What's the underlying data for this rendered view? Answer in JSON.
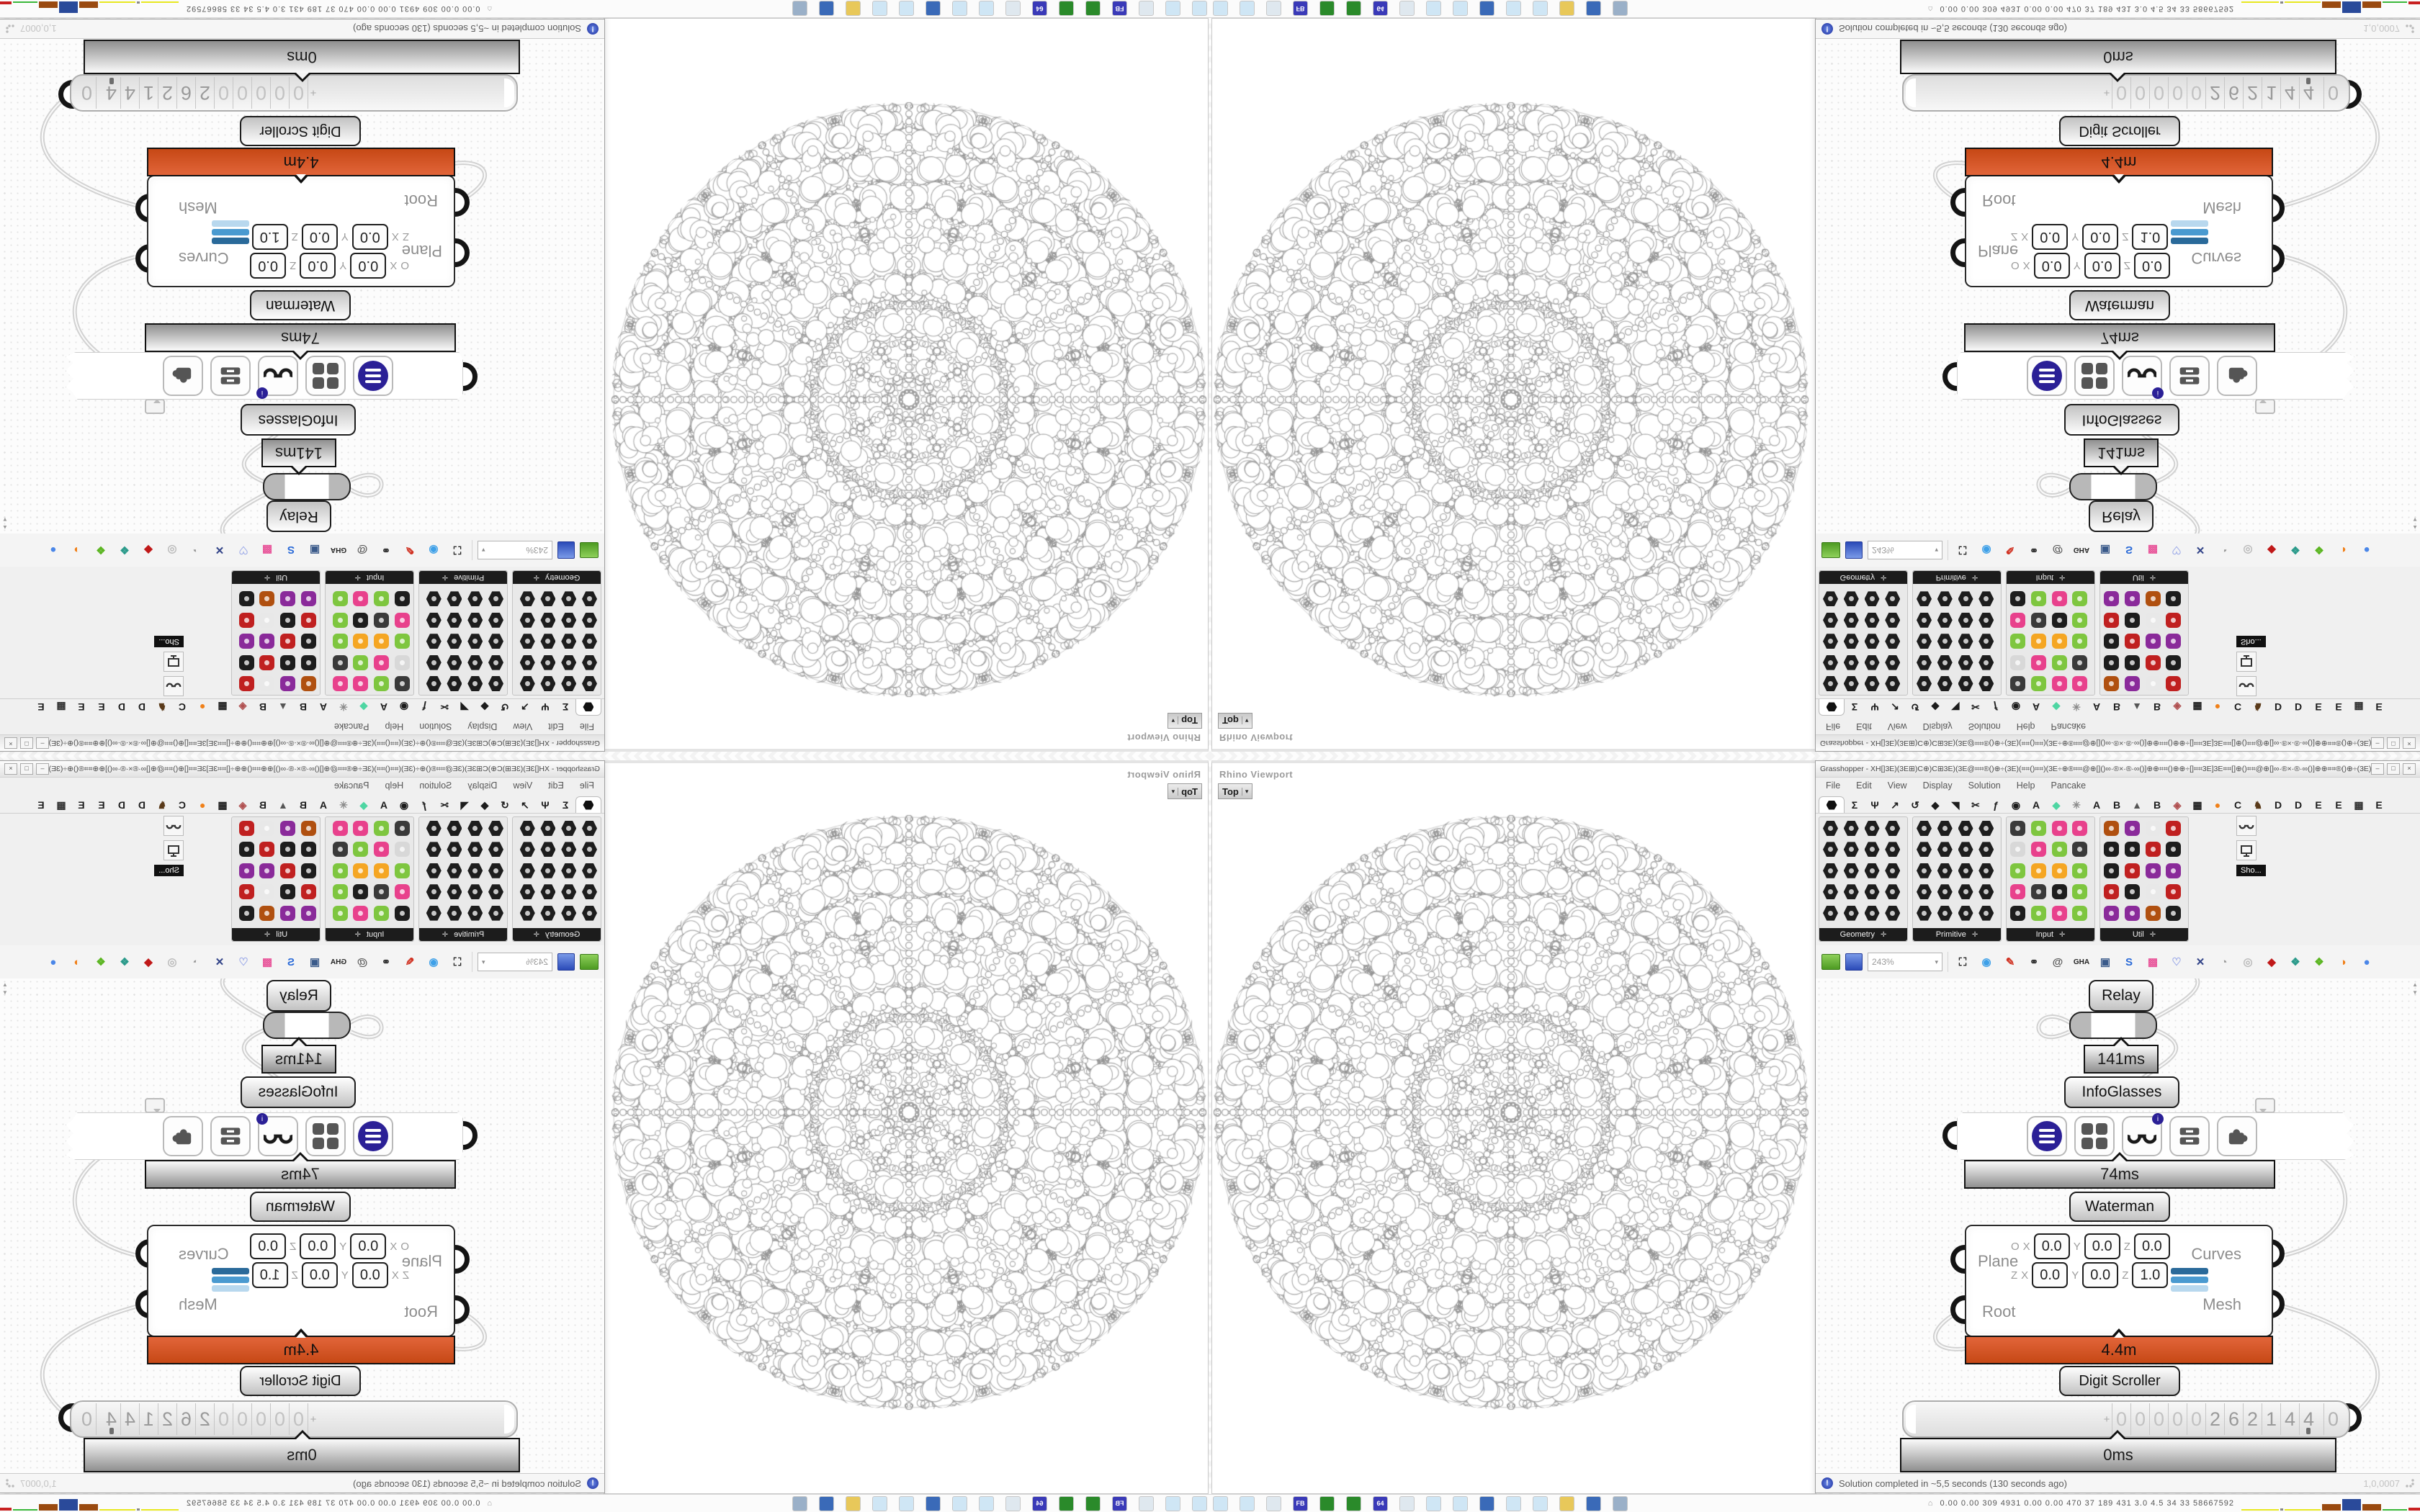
{
  "quadrant": {
    "viewport": {
      "window_title": "Rhino Viewport",
      "tab_label": "Top",
      "tab_caret": "▾"
    },
    "gh": {
      "title": "Grasshopper - XH[]3E)(3E⊞)C⊕)C⊞3E)(3E@⌗⌗®()⊕÷(3E)(⌗⌗()⌗⌗)(3E÷⊕®⌗⌗@⊕[]()∞·®×·®·∞()]⊕⊕⌗⌗()⊕⊕÷[]⌗⌗3E]3E⌗⌗[]⊕()⌗⌗@⊕[]∞·®×·®·∞()]⊕⊕⌗⌗®()⊕÷(3E)(⌗⌗()...",
      "window_buttons": [
        "–",
        "□",
        "×"
      ],
      "menu": [
        "File",
        "Edit",
        "View",
        "Display",
        "Solution",
        "Help",
        "Pancake"
      ],
      "tabs": [
        {
          "hex": true,
          "sel": true
        },
        {
          "g": "Σ"
        },
        {
          "g": "Ψ"
        },
        {
          "g": "↗"
        },
        {
          "g": "↺"
        },
        {
          "g": "◆"
        },
        {
          "g": "◥"
        },
        {
          "g": "✂"
        },
        {
          "g": "ƒ"
        },
        {
          "g": "◉"
        },
        {
          "g": "A"
        },
        {
          "g": "◆",
          "c": "#4fd6a3"
        },
        {
          "g": "✳",
          "c": "#8a8a8a"
        },
        {
          "g": "A"
        },
        {
          "g": "B"
        },
        {
          "g": "▲",
          "c": "#555555"
        },
        {
          "g": "B"
        },
        {
          "g": "◈",
          "c": "#b05050"
        },
        {
          "g": "▦"
        },
        {
          "g": "●",
          "c": "#f08019"
        },
        {
          "g": "C"
        },
        {
          "g": "♞",
          "c": "#5a3a1a"
        },
        {
          "g": "D"
        },
        {
          "g": "D"
        },
        {
          "g": "E"
        },
        {
          "g": "E"
        },
        {
          "g": "▩",
          "c": "#333333"
        },
        {
          "g": "E"
        }
      ],
      "groups": [
        {
          "name": "Geometry",
          "expand": "✛",
          "palette": [
            "#1d1d1d"
          ]
        },
        {
          "name": "Primitive",
          "expand": "✛",
          "palette": [
            "#1d1d1d"
          ]
        },
        {
          "name": "Input",
          "expand": "✛",
          "palette": [
            "#1d1d1d",
            "#e8418c",
            "#f5a623",
            "#7ec63f",
            "#3a3a3a",
            "#d8d8d8"
          ]
        },
        {
          "name": "Util",
          "expand": "✛",
          "palette": [
            "#1d1d1d",
            "#8a2a9a",
            "#c02020",
            "#e8e8e8",
            "#b05010"
          ]
        }
      ],
      "sho": {
        "tooltip": "Sho..."
      },
      "toolbar": {
        "zoom_value": "243%",
        "icons": [
          {
            "g": "⛶",
            "c": "#222222"
          },
          {
            "g": "◉",
            "c": "#3ea0e8"
          },
          {
            "g": "✎",
            "c": "#d03020"
          },
          {
            "g": "⚭",
            "c": "#333333"
          },
          {
            "g": "@",
            "c": "#555555"
          },
          {
            "g": "GHA",
            "c": "#222222"
          },
          {
            "g": "▣",
            "c": "#3a5a8a"
          },
          {
            "g": "S",
            "c": "#2a6ad8"
          },
          {
            "g": "▩",
            "c": "#e8559a"
          },
          {
            "g": "♡",
            "c": "#9aa8e8"
          },
          {
            "g": "✕",
            "c": "#334488"
          },
          {
            "g": "◔",
            "c": "#999999"
          },
          {
            "g": "◎",
            "c": "#bbbbbb"
          },
          {
            "g": "◆",
            "c": "#c01818"
          },
          {
            "g": "❖",
            "c": "#2a9a8a"
          },
          {
            "g": "❖",
            "c": "#5ab520"
          },
          {
            "g": "◑",
            "c": "#f08019"
          },
          {
            "g": "●",
            "c": "#4a86e8"
          }
        ],
        "caret": "▾"
      },
      "nodes": {
        "relay_label": "Relay",
        "relay_time": "141ms",
        "infoglasses_label": "InfoGlasses",
        "widget_time": "74ms",
        "waterman_label": "Waterman",
        "waterman": {
          "inputs": [
            "Plane",
            "Root"
          ],
          "outputs": [
            "Curves",
            "Mesh"
          ],
          "rows": [
            {
              "label": "O",
              "coords": [
                {
                  "k": "X",
                  "v": "0.0"
                },
                {
                  "k": "Y",
                  "v": "0.0"
                },
                {
                  "k": "Z",
                  "v": "0.0"
                }
              ]
            },
            {
              "label": "Z",
              "coords": [
                {
                  "k": "X",
                  "v": "0.0"
                },
                {
                  "k": "Y",
                  "v": "0.0"
                },
                {
                  "k": "Z",
                  "v": "1.0"
                }
              ]
            }
          ]
        },
        "slider_value": "4.4m",
        "digit_label": "Digit Scroller",
        "digits": {
          "sign": "+",
          "cells": [
            "0",
            "0",
            "0",
            "0",
            "0",
            "2",
            "6",
            "2",
            "1",
            "4",
            "4"
          ],
          "decimal": "0"
        },
        "scroller_time": "0ms"
      },
      "status": {
        "text": "Solution completed in ~5,5 seconds (130 seconds ago)",
        "version": "1,0,0007"
      }
    },
    "taskbar": {
      "numbers": "0.00  0.00  309  4931 0.00  0.00  470    37    189   431   3.0    4.5     34     33   58667592",
      "quick_icons": [
        {
          "g": "",
          "c": "#cfe6f5"
        },
        {
          "g": "",
          "c": "#cfe6f5"
        },
        {
          "g": "",
          "c": "#dfe8ef"
        },
        {
          "g": "FB",
          "c": "#3a3ab8"
        },
        {
          "g": "",
          "c": "#2a8a2a"
        },
        {
          "g": "",
          "c": "#2a8a2a"
        },
        {
          "g": "64",
          "c": "#3a3ab8"
        },
        {
          "g": "",
          "c": "#dfe8ef"
        },
        {
          "g": "",
          "c": "#cfe6f5"
        },
        {
          "g": "",
          "c": "#cfe6f5"
        },
        {
          "g": "",
          "c": "#3a6ab8"
        },
        {
          "g": "",
          "c": "#cfe6f5"
        },
        {
          "g": "",
          "c": "#cfe6f5"
        },
        {
          "g": "",
          "c": "#e8c85a"
        },
        {
          "g": "",
          "c": "#3a6ab8"
        },
        {
          "g": "",
          "c": "#9ab0c8"
        }
      ]
    }
  }
}
